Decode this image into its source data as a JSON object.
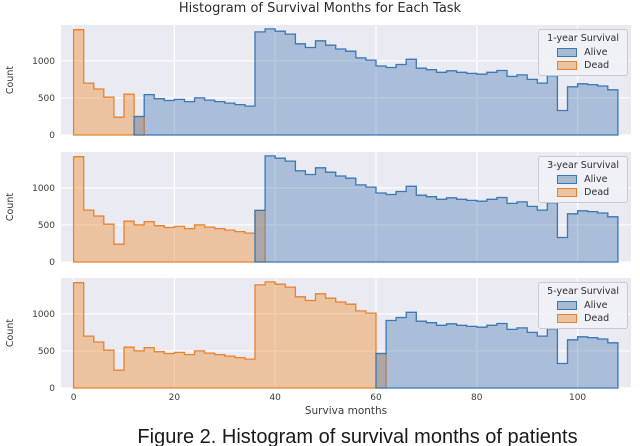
{
  "figure": {
    "title": "Histogram of Survival Months for Each Task",
    "caption": "Figure 2. Histogram of survival months of patients"
  },
  "chart_data": {
    "type": "bar",
    "subtype": "overlaid-step-histograms-3-stacked-panels",
    "title": "Histogram of Survival Months for Each Task",
    "xlabel": "Surviva months",
    "ylabel": "Count",
    "x_ticks": [
      0,
      20,
      40,
      60,
      80,
      100
    ],
    "y_ticks": [
      0,
      500,
      1000
    ],
    "xlim": [
      -2.5,
      110.6
    ],
    "ylim": [
      0,
      1483
    ],
    "grid": true,
    "legend_position": "upper right",
    "bin_width_months": 2,
    "bins_start_month": 0,
    "total_counts": [
      1420,
      700,
      620,
      510,
      240,
      550,
      500,
      545,
      490,
      465,
      480,
      450,
      500,
      470,
      450,
      430,
      410,
      390,
      1390,
      1430,
      1400,
      1360,
      1230,
      1180,
      1270,
      1210,
      1160,
      1130,
      1040,
      1010,
      930,
      910,
      950,
      1020,
      900,
      880,
      845,
      865,
      845,
      830,
      820,
      845,
      870,
      790,
      810,
      750,
      700,
      800,
      330,
      650,
      690,
      680,
      660,
      610
    ],
    "legend_labels": [
      "Alive",
      "Dead"
    ],
    "panels": [
      {
        "legend_title": "1-year Survival",
        "threshold_months": 12
      },
      {
        "legend_title": "3-year Survival",
        "threshold_months": 36
      },
      {
        "legend_title": "5-year Survival",
        "threshold_months": 60
      }
    ],
    "overlap_note": "at the threshold bin both classes have half the total count (renders gray)",
    "colors": {
      "alive_edge": "#3878b4",
      "alive_fill": "rgba(76,124,181,0.40)",
      "dead_edge": "#e8822d",
      "dead_fill": "rgba(237,140,50,0.42)",
      "plot_bg": "#eaeaf2",
      "grid": "#ffffff",
      "tick_text": "#3b3b3b"
    }
  }
}
